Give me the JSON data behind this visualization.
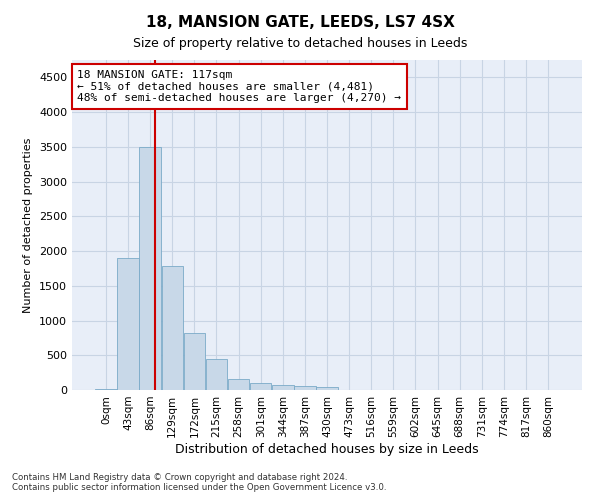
{
  "title": "18, MANSION GATE, LEEDS, LS7 4SX",
  "subtitle": "Size of property relative to detached houses in Leeds",
  "xlabel": "Distribution of detached houses by size in Leeds",
  "ylabel": "Number of detached properties",
  "bar_color": "#c8d8e8",
  "bar_edge_color": "#7aaac8",
  "vline_color": "#cc0000",
  "annotation_text": "18 MANSION GATE: 117sqm\n← 51% of detached houses are smaller (4,481)\n48% of semi-detached houses are larger (4,270) →",
  "annotation_box_color": "#cc0000",
  "categories": [
    "0sqm",
    "43sqm",
    "86sqm",
    "129sqm",
    "172sqm",
    "215sqm",
    "258sqm",
    "301sqm",
    "344sqm",
    "387sqm",
    "430sqm",
    "473sqm",
    "516sqm",
    "559sqm",
    "602sqm",
    "645sqm",
    "688sqm",
    "731sqm",
    "774sqm",
    "817sqm",
    "860sqm"
  ],
  "values": [
    10,
    1900,
    3500,
    1780,
    820,
    450,
    160,
    100,
    70,
    55,
    40,
    0,
    0,
    0,
    0,
    0,
    0,
    0,
    0,
    0,
    0
  ],
  "ylim": [
    0,
    4750
  ],
  "yticks": [
    0,
    500,
    1000,
    1500,
    2000,
    2500,
    3000,
    3500,
    4000,
    4500
  ],
  "footer_text": "Contains HM Land Registry data © Crown copyright and database right 2024.\nContains public sector information licensed under the Open Government Licence v3.0.",
  "grid_color": "#c8d4e4",
  "background_color": "#e8eef8",
  "vline_sqm": 117,
  "bin_start_sqm": [
    0,
    43,
    86,
    129,
    172,
    215,
    258,
    301,
    344,
    387,
    430,
    473,
    516,
    559,
    602,
    645,
    688,
    731,
    774,
    817,
    860
  ]
}
